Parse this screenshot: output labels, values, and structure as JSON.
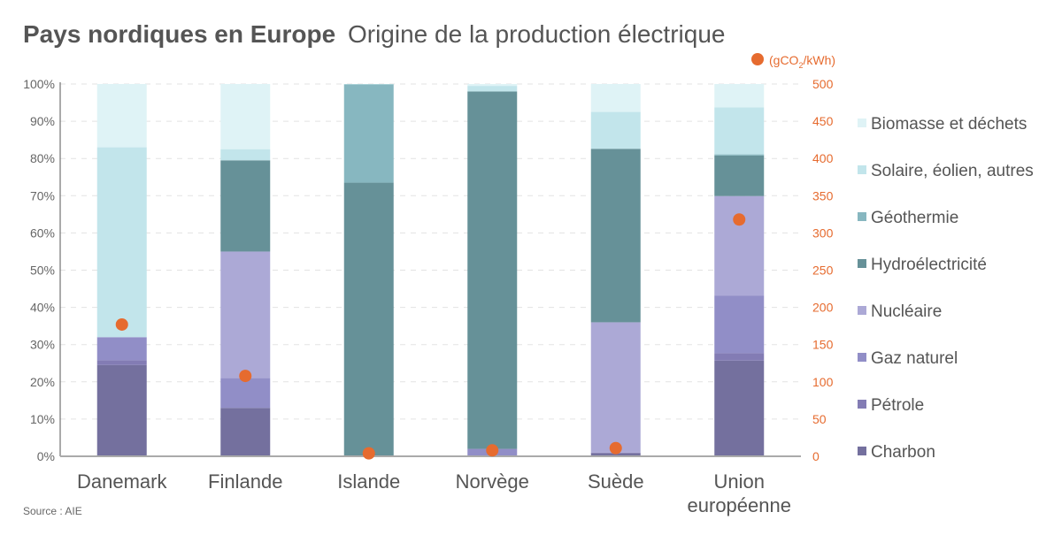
{
  "chart_data": {
    "type": "bar",
    "stacked": true,
    "title_bold": "Pays nordiques en Europe",
    "title_rest": "Origine de la production électrique",
    "source": "Source : AIE",
    "categories": [
      "Danemark",
      "Finlande",
      "Islande",
      "Norvège",
      "Suède",
      "Union européenne"
    ],
    "category_lines": [
      [
        "Danemark"
      ],
      [
        "Finlande"
      ],
      [
        "Islande"
      ],
      [
        "Norvège"
      ],
      [
        "Suède"
      ],
      [
        "Union",
        "européenne"
      ]
    ],
    "ylim": [
      0,
      100
    ],
    "yticks": [
      "0%",
      "10%",
      "20%",
      "30%",
      "40%",
      "50%",
      "60%",
      "70%",
      "80%",
      "90%",
      "100%"
    ],
    "y2lim": [
      0,
      500
    ],
    "y2ticks": [
      "0",
      "50",
      "100",
      "150",
      "200",
      "250",
      "300",
      "350",
      "400",
      "450",
      "500"
    ],
    "y2label_pre": "(gCO",
    "y2label_sub": "2",
    "y2label_post": "/kWh)",
    "grid": true,
    "legend_position": "right",
    "series": [
      {
        "name": "Charbon",
        "color": "#74709e",
        "values": [
          24.5,
          13,
          0,
          0,
          0.8,
          25.7
        ]
      },
      {
        "name": "Pétrole",
        "color": "#837cb4",
        "values": [
          1.3,
          0,
          0,
          0.1,
          0.2,
          2
        ]
      },
      {
        "name": "Gaz naturel",
        "color": "#918ec7",
        "values": [
          6.2,
          8,
          0,
          1.9,
          0,
          15.5
        ]
      },
      {
        "name": "Nucléaire",
        "color": "#aca9d6",
        "values": [
          0,
          34,
          0,
          0,
          35,
          26.7
        ]
      },
      {
        "name": "Hydroélectricité",
        "color": "#669198",
        "values": [
          0,
          24.5,
          73.5,
          96,
          46.6,
          10.9
        ]
      },
      {
        "name": "Géothermie",
        "color": "#87b7c0",
        "values": [
          0,
          0,
          26.4,
          0,
          0,
          0.3
        ]
      },
      {
        "name": "Solaire, éolien, autres",
        "color": "#c2e5eb",
        "values": [
          51,
          3,
          0.1,
          1.5,
          9.9,
          12.6
        ]
      },
      {
        "name": "Biomasse et déchets",
        "color": "#dff3f6",
        "values": [
          17,
          17.5,
          0,
          0.5,
          7.5,
          6.3
        ]
      }
    ],
    "co2_series": {
      "name": "gCO2/kWh",
      "color": "#e66b2f",
      "values": [
        177,
        108,
        4,
        8,
        11,
        318
      ]
    }
  }
}
